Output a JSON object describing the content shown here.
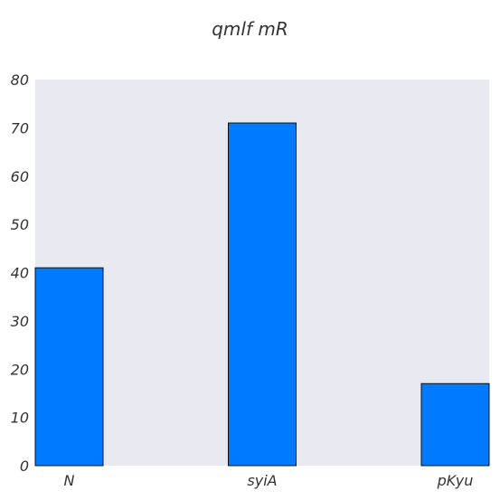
{
  "chart_data": {
    "type": "bar",
    "title": "qmlf mR",
    "categories": [
      "N",
      "syiA",
      "pKyu"
    ],
    "values": [
      41,
      71,
      17
    ],
    "xlabel": "",
    "ylabel": "",
    "ylim": [
      0,
      80
    ],
    "yticks": [
      0,
      10,
      20,
      30,
      40,
      50,
      60,
      70,
      80
    ],
    "grid": false,
    "legend": "none",
    "colors": {
      "bar": "#007bff",
      "bar_edge": "#111111",
      "plot_bg": "#e9e9f2",
      "text": "#333333"
    }
  }
}
